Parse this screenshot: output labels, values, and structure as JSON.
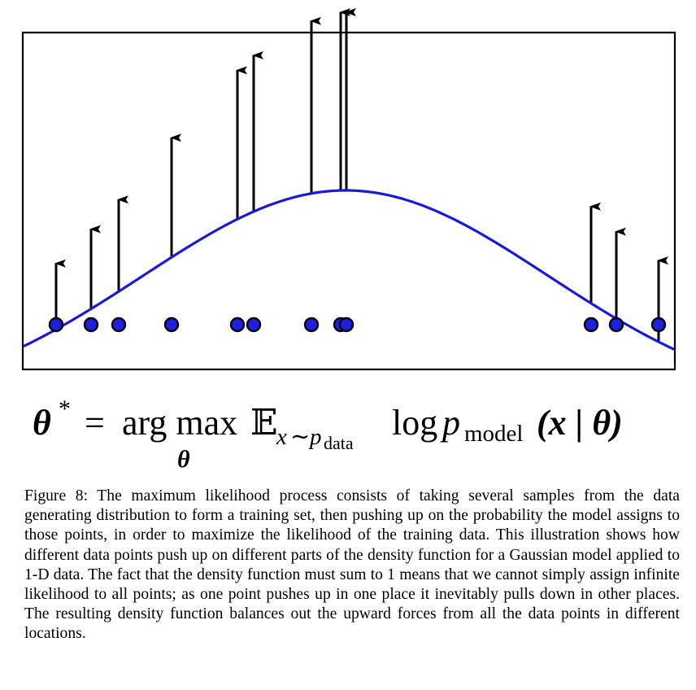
{
  "figure": {
    "curve_color": "#1a1ad6",
    "point_fill": "#1f1fe0",
    "arrow_color": "#000000",
    "points_x": [
      69,
      112,
      146,
      211,
      292,
      312,
      383,
      419,
      426,
      727,
      758,
      810
    ],
    "arrow_heights": [
      81,
      98,
      113,
      147,
      183,
      192,
      212,
      219,
      219,
      119,
      107,
      100
    ]
  },
  "formula": {
    "lhs": "θ",
    "star": "*",
    "equals": "=",
    "argmax": "arg max",
    "subscript_theta": "θ",
    "expect": "𝔼",
    "expect_sub_x": "x",
    "expect_sub_sim": "∼",
    "expect_sub_p": "p",
    "expect_sub_data": "data",
    "log": "log",
    "p": "p",
    "model": "model",
    "args": "(x | θ)"
  },
  "caption": {
    "text": "Figure 8: The maximum likelihood process consists of taking several samples from the data generating distribution to form a training set, then pushing up on the probability the model assigns to those points, in order to maximize the likelihood of the training data. This illustration shows how different data points push up on different parts of the density function for a Gaussian model applied to 1-D data. The fact that the density function must sum to 1 means that we cannot simply assign infinite likelihood to all points; as one point pushes up in one place it inevitably pulls down in other places. The resulting density function balances out the upward forces from all the data points in different locations."
  }
}
